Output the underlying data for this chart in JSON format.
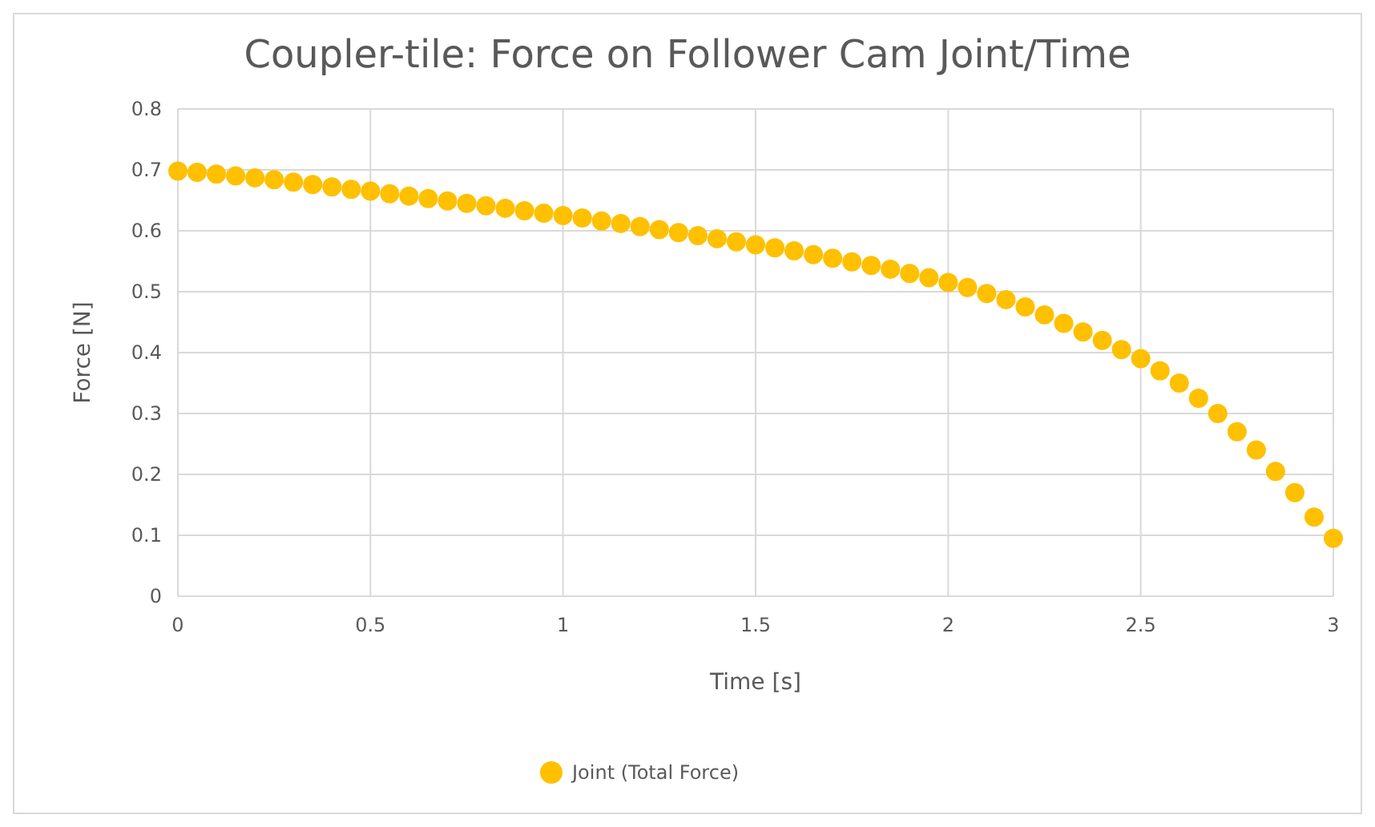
{
  "chart_data": {
    "type": "scatter",
    "title": "Coupler-tile: Force on Follower Cam Joint/Time",
    "xlabel": "Time [s]",
    "ylabel": "Force [N]",
    "x": [
      0,
      0.05,
      0.1,
      0.15,
      0.2,
      0.25,
      0.3,
      0.35,
      0.4,
      0.45,
      0.5,
      0.55,
      0.6,
      0.65,
      0.7,
      0.75,
      0.8,
      0.85,
      0.9,
      0.95,
      1,
      1.05,
      1.1,
      1.15,
      1.2,
      1.25,
      1.3,
      1.35,
      1.4,
      1.45,
      1.5,
      1.55,
      1.6,
      1.65,
      1.7,
      1.75,
      1.8,
      1.85,
      1.9,
      1.95,
      2,
      2.05,
      2.1,
      2.15,
      2.2,
      2.25,
      2.3,
      2.35,
      2.4,
      2.45,
      2.5,
      2.55,
      2.6,
      2.65,
      2.7,
      2.75,
      2.8,
      2.85,
      2.9,
      2.95,
      3
    ],
    "series": [
      {
        "name": "Joint (Total Force)",
        "color": "#ffc000",
        "values": [
          0.698,
          0.696,
          0.693,
          0.69,
          0.687,
          0.684,
          0.68,
          0.676,
          0.672,
          0.668,
          0.665,
          0.661,
          0.657,
          0.653,
          0.649,
          0.645,
          0.641,
          0.637,
          0.633,
          0.629,
          0.625,
          0.621,
          0.616,
          0.612,
          0.607,
          0.602,
          0.597,
          0.592,
          0.587,
          0.582,
          0.577,
          0.572,
          0.567,
          0.561,
          0.555,
          0.549,
          0.543,
          0.537,
          0.53,
          0.523,
          0.515,
          0.507,
          0.497,
          0.487,
          0.475,
          0.462,
          0.448,
          0.434,
          0.42,
          0.405,
          0.39,
          0.37,
          0.35,
          0.325,
          0.3,
          0.27,
          0.24,
          0.205,
          0.17,
          0.13,
          0.095
        ]
      }
    ],
    "xlim": [
      0,
      3
    ],
    "xticks": [
      0,
      0.5,
      1,
      1.5,
      2,
      2.5,
      3
    ],
    "ylim": [
      0,
      0.8
    ],
    "yticks": [
      0,
      0.1,
      0.2,
      0.3,
      0.4,
      0.5,
      0.6,
      0.7,
      0.8
    ],
    "grid": true,
    "legend": "bottom",
    "marker": "circle"
  }
}
